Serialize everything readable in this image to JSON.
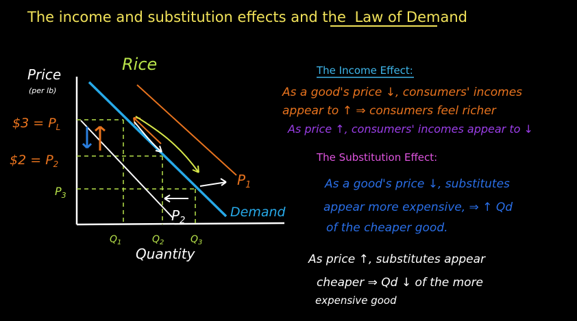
{
  "header": {
    "title_parts": [
      "The income and substitution effects and the",
      "Law of Demand"
    ]
  },
  "graph": {
    "product": "Rice",
    "y_axis": {
      "label": "Price",
      "unit": "(per lb)"
    },
    "x_axis": {
      "label": "Quantity"
    },
    "price_levels": [
      {
        "prefix": "$3 =",
        "base": "P",
        "sub": "L"
      },
      {
        "prefix": "$2 =",
        "base": "P",
        "sub": "2"
      },
      {
        "prefix": "",
        "base": "P",
        "sub": "3"
      }
    ],
    "quantities": [
      {
        "base": "Q",
        "sub": "1"
      },
      {
        "base": "Q",
        "sub": "2"
      },
      {
        "base": "Q",
        "sub": "3"
      }
    ],
    "curves": {
      "demand": "Demand",
      "p1": {
        "base": "P",
        "sub": "1"
      },
      "p2": {
        "base": "P",
        "sub": "2"
      }
    }
  },
  "notes": {
    "income_effect": {
      "heading": "The Income Effect:",
      "lines": [
        "As a good's price ↓, consumers' incomes",
        "appear to ↑ ⇒ consumers feel richer",
        "As price ↑, consumers' incomes appear to ↓"
      ]
    },
    "substitution_effect": {
      "heading": "The Substitution Effect:",
      "lines": [
        "As a good's price ↓, substitutes",
        "appear more expensive, ⇒ ↑ Qd",
        "of the cheaper good.",
        "As price ↑, substitutes appear",
        "cheaper ⇒ Qd ↓ of the more",
        "expensive good"
      ]
    }
  }
}
